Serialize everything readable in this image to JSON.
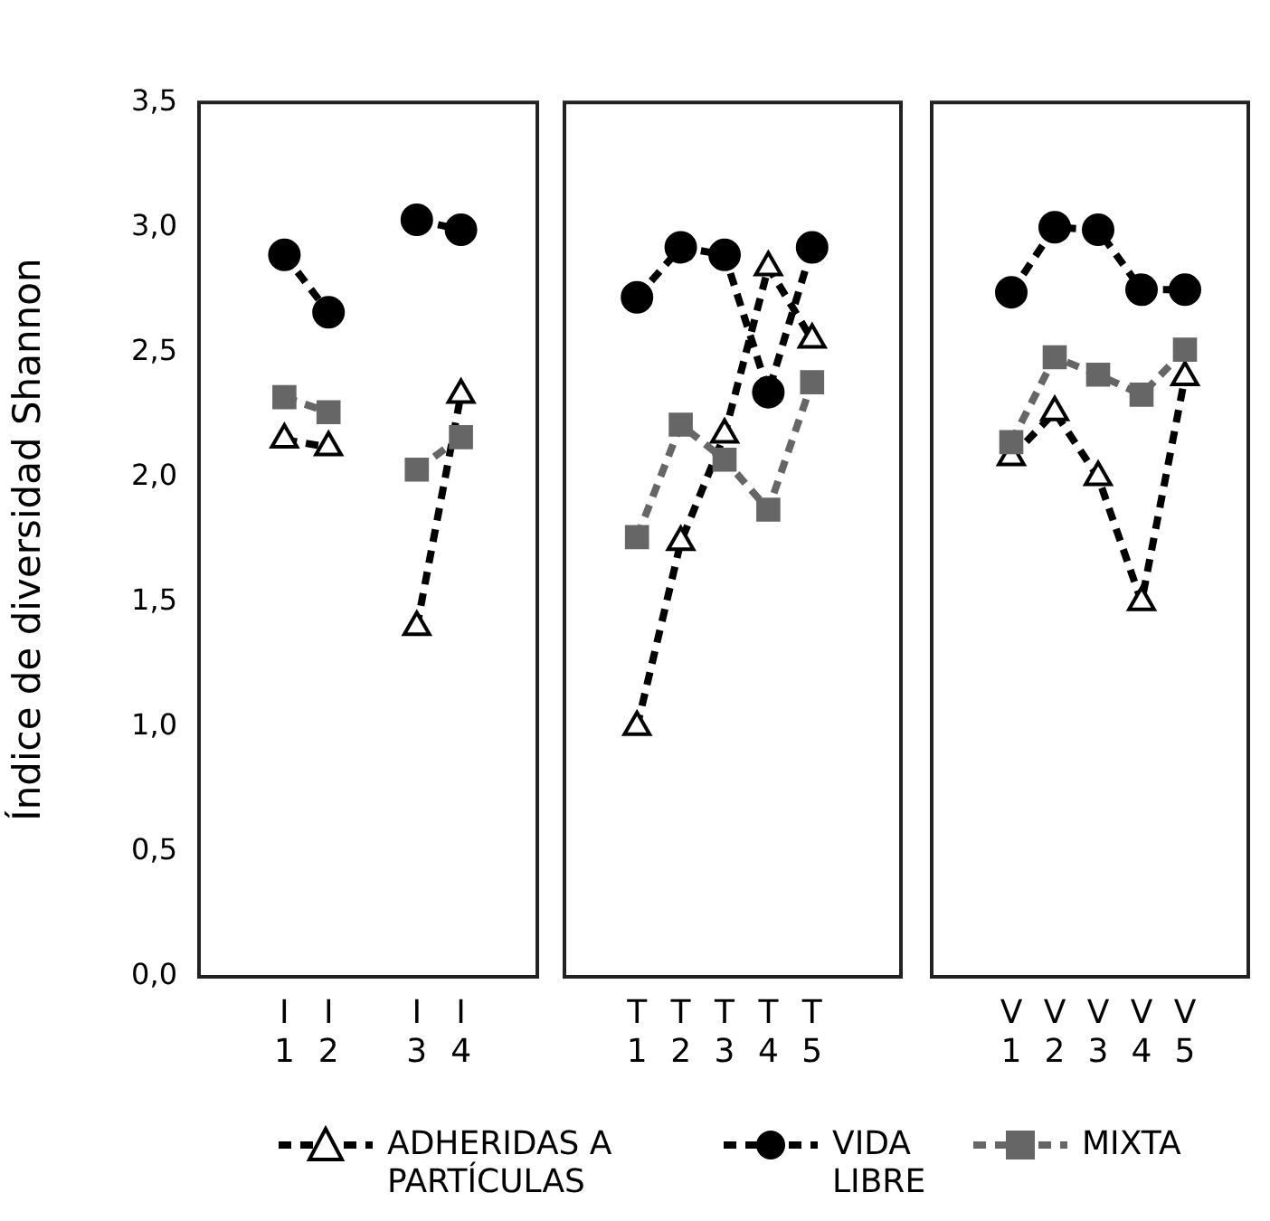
{
  "chart_data": [
    {
      "type": "line",
      "ylabel": "Índice de diversidad Shannon",
      "categories": [
        "I 1",
        "I 2",
        null,
        "I 3",
        "I 4"
      ],
      "ylim": [
        0,
        3.5
      ],
      "yticks": [
        {
          "value": 0,
          "label": "0,0"
        },
        {
          "value": 0.5,
          "label": "0,5"
        },
        {
          "value": 1,
          "label": "1,0"
        },
        {
          "value": 1.5,
          "label": "1,5"
        },
        {
          "value": 2,
          "label": "2,0"
        },
        {
          "value": 2.5,
          "label": "2,5"
        },
        {
          "value": 3,
          "label": "3,0"
        },
        {
          "value": 3.5,
          "label": "3,5"
        }
      ],
      "legend": "bottom",
      "series": [
        {
          "name": "ADHERIDAS A PARTÍCULAS",
          "color": "#000000",
          "marker": "triangle",
          "line_style": "dashed",
          "values": [
            2.15,
            2.12,
            null,
            1.4,
            2.33
          ]
        },
        {
          "name": "VIDA LIBRE",
          "color": "#000000",
          "marker": "circle",
          "line_style": "dashed",
          "values": [
            2.89,
            2.66,
            null,
            3.03,
            2.99
          ]
        },
        {
          "name": "MIXTA",
          "color": "#666666",
          "marker": "square",
          "line_style": "dashed",
          "values": [
            2.32,
            2.26,
            null,
            2.03,
            2.16
          ]
        }
      ]
    },
    {
      "type": "line",
      "categories": [
        "T 1",
        "T 2",
        "T 3",
        "T 4",
        "T 5"
      ],
      "ylim": [
        0,
        3.5
      ],
      "tick_labels": "x",
      "series": [
        {
          "color": "#000000",
          "marker": "triangle",
          "line_style": "dashed",
          "values": [
            1.0,
            1.74,
            2.17,
            2.84,
            2.55
          ]
        },
        {
          "color": "#000000",
          "marker": "circle",
          "line_style": "dashed",
          "values": [
            2.72,
            2.92,
            2.89,
            2.34,
            2.92
          ]
        },
        {
          "color": "#666666",
          "marker": "square",
          "line_style": "dashed",
          "values": [
            1.76,
            2.21,
            2.07,
            1.87,
            2.38
          ]
        }
      ]
    },
    {
      "type": "line",
      "categories": [
        "V 1",
        "V 2",
        "V 3",
        "V 4",
        "V 5"
      ],
      "ylim": [
        0,
        3.5
      ],
      "tick_labels": "x",
      "series": [
        {
          "color": "#000000",
          "marker": "triangle",
          "line_style": "dashed",
          "values": [
            2.08,
            2.26,
            2.0,
            1.5,
            2.4
          ]
        },
        {
          "color": "#000000",
          "marker": "circle",
          "line_style": "dashed",
          "values": [
            2.74,
            3.0,
            2.99,
            2.75,
            2.75
          ]
        },
        {
          "color": "#666666",
          "marker": "square",
          "line_style": "dashed",
          "values": [
            2.14,
            2.48,
            2.41,
            2.33,
            2.51
          ]
        }
      ]
    }
  ]
}
